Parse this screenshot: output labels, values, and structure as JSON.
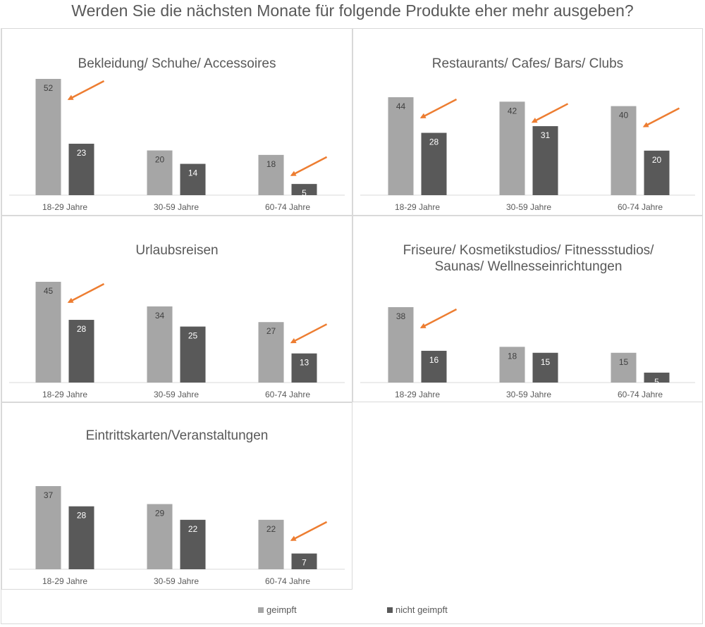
{
  "title": "Werden Sie die nächsten Monate für folgende Produkte eher mehr ausgeben?",
  "colors": {
    "geimpft": "#a6a6a6",
    "nicht_geimpft": "#595959",
    "arrow": "#ed7d31",
    "axis": "#d9d9d9",
    "text": "#595959"
  },
  "legend": {
    "geimpft": "geimpft",
    "nicht_geimpft": "nicht geimpft"
  },
  "chart_data": [
    {
      "type": "bar",
      "title": "Bekleidung/ Schuhe/ Accessoires",
      "categories": [
        "18-29 Jahre",
        "30-59 Jahre",
        "60-74 Jahre"
      ],
      "series": [
        {
          "name": "geimpft",
          "values": [
            52,
            20,
            18
          ]
        },
        {
          "name": "nicht geimpft",
          "values": [
            23,
            14,
            5
          ]
        }
      ],
      "arrows": [
        "18-29 Jahre",
        "60-74 Jahre"
      ],
      "ylim": [
        0,
        52
      ]
    },
    {
      "type": "bar",
      "title": "Restaurants/ Cafes/ Bars/ Clubs",
      "categories": [
        "18-29 Jahre",
        "30-59 Jahre",
        "60-74 Jahre"
      ],
      "series": [
        {
          "name": "geimpft",
          "values": [
            44,
            42,
            40
          ]
        },
        {
          "name": "nicht geimpft",
          "values": [
            28,
            31,
            20
          ]
        }
      ],
      "arrows": [
        "18-29 Jahre",
        "30-59 Jahre",
        "60-74 Jahre"
      ],
      "ylim": [
        0,
        44
      ]
    },
    {
      "type": "bar",
      "title": "Urlaubsreisen",
      "categories": [
        "18-29 Jahre",
        "30-59 Jahre",
        "60-74 Jahre"
      ],
      "series": [
        {
          "name": "geimpft",
          "values": [
            45,
            34,
            27
          ]
        },
        {
          "name": "nicht geimpft",
          "values": [
            28,
            25,
            13
          ]
        }
      ],
      "arrows": [
        "18-29 Jahre",
        "60-74 Jahre"
      ],
      "ylim": [
        0,
        45
      ]
    },
    {
      "type": "bar",
      "title": "Friseure/ Kosmetikstudios/ Fitnessstudios/ Saunas/ Wellnesseinrichtungen",
      "categories": [
        "18-29 Jahre",
        "30-59 Jahre",
        "60-74 Jahre"
      ],
      "series": [
        {
          "name": "geimpft",
          "values": [
            38,
            18,
            15
          ]
        },
        {
          "name": "nicht geimpft",
          "values": [
            16,
            15,
            5
          ]
        }
      ],
      "arrows": [
        "18-29 Jahre"
      ],
      "ylim": [
        0,
        38
      ]
    },
    {
      "type": "bar",
      "title": "Eintrittskarten/Veranstaltungen",
      "categories": [
        "18-29 Jahre",
        "30-59 Jahre",
        "60-74 Jahre"
      ],
      "series": [
        {
          "name": "geimpft",
          "values": [
            37,
            29,
            22
          ]
        },
        {
          "name": "nicht geimpft",
          "values": [
            28,
            22,
            7
          ]
        }
      ],
      "arrows": [
        "60-74 Jahre"
      ],
      "ylim": [
        0,
        37
      ]
    }
  ]
}
